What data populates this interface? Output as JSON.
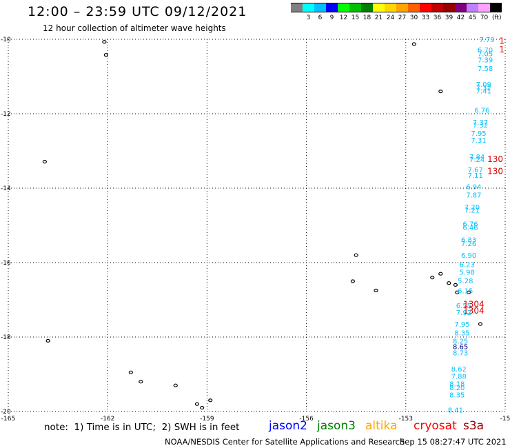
{
  "header": {
    "title": "12:00 – 23:59 UTC 09/12/2021",
    "subtitle": "12 hour collection of altimeter wave heights"
  },
  "legend": {
    "colors": [
      "#808080",
      "#00ffff",
      "#00bfff",
      "#0000ff",
      "#00ff00",
      "#00c000",
      "#008000",
      "#ffff00",
      "#ffd700",
      "#ffa500",
      "#ff6000",
      "#ff0000",
      "#c00000",
      "#990000",
      "#800080",
      "#bf7fff",
      "#ffa0ff",
      "#000000"
    ],
    "ticks": [
      "3",
      "6",
      "9",
      "12",
      "15",
      "18",
      "21",
      "24",
      "27",
      "30",
      "33",
      "36",
      "39",
      "42",
      "45",
      "70"
    ],
    "unit": "(ft)"
  },
  "map": {
    "lon_min": -165,
    "lon_max": -150,
    "lat_min": -20,
    "lat_max": -10,
    "lon_ticks": [
      "-165",
      "-162",
      "-159",
      "-156",
      "-153",
      "-15"
    ],
    "lat_ticks": [
      "-10",
      "-12",
      "-14",
      "-16",
      "-18",
      "-20"
    ],
    "islands": [
      {
        "lon": -162.1,
        "lat": -10.07
      },
      {
        "lon": -162.05,
        "lat": -10.42
      },
      {
        "lon": -163.9,
        "lat": -13.29
      },
      {
        "lon": -163.8,
        "lat": -18.1
      },
      {
        "lon": -161.3,
        "lat": -18.95
      },
      {
        "lon": -161.0,
        "lat": -19.2
      },
      {
        "lon": -159.95,
        "lat": -19.3
      },
      {
        "lon": -159.3,
        "lat": -19.8
      },
      {
        "lon": -159.15,
        "lat": -19.9
      },
      {
        "lon": -158.9,
        "lat": -19.7
      },
      {
        "lon": -152.75,
        "lat": -10.13
      },
      {
        "lon": -151.95,
        "lat": -11.4
      },
      {
        "lon": -154.5,
        "lat": -15.8
      },
      {
        "lon": -154.6,
        "lat": -16.5
      },
      {
        "lon": -153.9,
        "lat": -16.75
      },
      {
        "lon": -152.2,
        "lat": -16.4
      },
      {
        "lon": -151.95,
        "lat": -16.3
      },
      {
        "lon": -151.7,
        "lat": -16.55
      },
      {
        "lon": -151.5,
        "lat": -16.6
      },
      {
        "lon": -151.45,
        "lat": -16.8
      },
      {
        "lon": -151.1,
        "lat": -16.8
      },
      {
        "lon": -150.75,
        "lat": -17.65
      }
    ],
    "swh_cyan": [
      {
        "text": "7.79",
        "lon": -150.55,
        "lat": -10.0
      },
      {
        "text": "6.70",
        "lon": -150.6,
        "lat": -10.28
      },
      {
        "text": "7.05",
        "lon": -150.6,
        "lat": -10.38
      },
      {
        "text": "7.39",
        "lon": -150.6,
        "lat": -10.55
      },
      {
        "text": "7.58",
        "lon": -150.6,
        "lat": -10.78
      },
      {
        "text": "7.09",
        "lon": -150.65,
        "lat": -11.2
      },
      {
        "text": "7.32",
        "lon": -150.65,
        "lat": -11.3
      },
      {
        "text": "7.41",
        "lon": -150.65,
        "lat": -11.38
      },
      {
        "text": "6.76",
        "lon": -150.7,
        "lat": -11.9
      },
      {
        "text": "7.37",
        "lon": -150.75,
        "lat": -12.22
      },
      {
        "text": "7.32",
        "lon": -150.75,
        "lat": -12.3
      },
      {
        "text": "7.95",
        "lon": -150.8,
        "lat": -12.52
      },
      {
        "text": "7.31",
        "lon": -150.8,
        "lat": -12.7
      },
      {
        "text": "7.84",
        "lon": -150.85,
        "lat": -13.15
      },
      {
        "text": "7.24",
        "lon": -150.85,
        "lat": -13.22
      },
      {
        "text": "7.67",
        "lon": -150.9,
        "lat": -13.5
      },
      {
        "text": "7.11",
        "lon": -150.9,
        "lat": -13.65
      },
      {
        "text": "6.94",
        "lon": -150.95,
        "lat": -13.95
      },
      {
        "text": "7.87",
        "lon": -150.95,
        "lat": -14.18
      },
      {
        "text": "7.20",
        "lon": -151.0,
        "lat": -14.5
      },
      {
        "text": "7.21",
        "lon": -151.0,
        "lat": -14.58
      },
      {
        "text": "6.76",
        "lon": -151.05,
        "lat": -14.95
      },
      {
        "text": "6.46",
        "lon": -151.05,
        "lat": -15.05
      },
      {
        "text": "6.83",
        "lon": -151.1,
        "lat": -15.38
      },
      {
        "text": "7.26",
        "lon": -151.1,
        "lat": -15.48
      },
      {
        "text": "6.90",
        "lon": -151.1,
        "lat": -15.8
      },
      {
        "text": "6.23",
        "lon": -151.15,
        "lat": -16.05
      },
      {
        "text": "5.98",
        "lon": -151.15,
        "lat": -16.25
      },
      {
        "text": "5.28",
        "lon": -151.2,
        "lat": -16.48
      },
      {
        "text": "6.15",
        "lon": -151.2,
        "lat": -16.75
      },
      {
        "text": "6.55",
        "lon": -151.25,
        "lat": -17.15
      },
      {
        "text": "7.92",
        "lon": -151.25,
        "lat": -17.33
      },
      {
        "text": "7.95",
        "lon": -151.3,
        "lat": -17.65
      },
      {
        "text": "8.35",
        "lon": -151.3,
        "lat": -17.88
      },
      {
        "text": "8.25",
        "lon": -151.35,
        "lat": -18.1
      },
      {
        "text": "8.73",
        "lon": -151.35,
        "lat": -18.42
      },
      {
        "text": "8.62",
        "lon": -151.4,
        "lat": -18.85
      },
      {
        "text": "7.88",
        "lon": -151.4,
        "lat": -19.05
      },
      {
        "text": "8.18",
        "lon": -151.45,
        "lat": -19.25
      },
      {
        "text": "8.20",
        "lon": -151.45,
        "lat": -19.35
      },
      {
        "text": "8.35",
        "lon": -151.45,
        "lat": -19.55
      },
      {
        "text": "8.41",
        "lon": -151.5,
        "lat": -19.95
      }
    ],
    "swh_dark": [
      {
        "text": "8.65",
        "lon": -151.35,
        "lat": -18.25
      }
    ],
    "swh_red": [
      {
        "text": "1",
        "lon": -150.1,
        "lat": -10.05
      },
      {
        "text": "1",
        "lon": -150.1,
        "lat": -10.28
      },
      {
        "text": "130",
        "lon": -150.3,
        "lat": -13.22
      },
      {
        "text": "130",
        "lon": -150.3,
        "lat": -13.55
      },
      {
        "text": "1304",
        "lon": -150.95,
        "lat": -17.12
      },
      {
        "text": "1304",
        "lon": -150.95,
        "lat": -17.3
      }
    ]
  },
  "footer": {
    "note": "note:  1) Time is in UTC;  2) SWH is in feet",
    "satellites": [
      {
        "name": "jason2",
        "color": "#0000ff"
      },
      {
        "name": "jason3",
        "color": "#008000"
      },
      {
        "name": "altika",
        "color": "#ffa500"
      },
      {
        "name": "cryosat",
        "color": "#ff0000"
      },
      {
        "name": "s3a",
        "color": "#990000"
      }
    ],
    "credit": "NOAA/NESDIS Center for Satellite Applications and Research",
    "timestamp": "Sep 15 08:27:47 UTC 2021"
  }
}
